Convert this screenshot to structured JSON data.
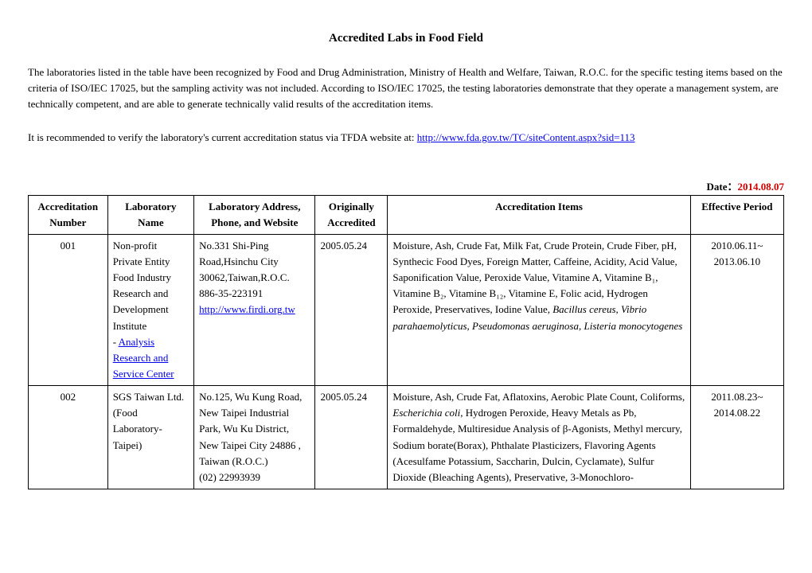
{
  "title": "Accredited Labs in Food Field",
  "intro_para": "The laboratories listed in the table have been recognized by Food and Drug Administration, Ministry of Health and Welfare, Taiwan, R.O.C. for the specific testing items based on the criteria of ISO/IEC 17025, but the sampling activity was not included. According to ISO/IEC 17025, the testing laboratories demonstrate that they operate a management system, are technically competent, and are able to generate technically valid results of the accreditation items.",
  "verify_text_prefix": "It is recommended to verify the laboratory's current accreditation status via TFDA website at: ",
  "verify_link": "http://www.fda.gov.tw/TC/siteContent.aspx?sid=113",
  "date_label": "Date：",
  "date_value": "2014.08.07",
  "columns": {
    "accnum": "Accreditation Number",
    "labname": "Laboratory Name",
    "addr": "Laboratory Address, Phone, and Website",
    "orig": "Originally Accredited",
    "items": "Accreditation Items",
    "eff": "Effective Period"
  },
  "rows": [
    {
      "accnum": "001",
      "labname_plain": "Non-profit Private Entity Food Industry Research and Development Institute",
      "labname_dash": "- ",
      "labname_link": "Analysis Research and Service Center",
      "addr_lines": "No.331 Shi-Ping Road,Hsinchu City 30062,Taiwan,R.O.C.",
      "addr_phone": "886-35-223191",
      "addr_website": "http://www.firdi.org.tw",
      "orig": "2005.05.24",
      "items_plain": "Moisture, Ash, Crude Fat, Milk Fat, Crude Protein, Crude Fiber, pH, Synthecic Food Dyes, Foreign Matter, Caffeine, Acidity, Acid Value, Saponification Value, Peroxide Value, Vitamine A, Vitamine B₁, Vitamine B₂, Vitamine B₁₂, Vitamine E, Folic acid, Hydrogen Peroxide, Preservatives, Iodine Value, ",
      "items_italic": "Bacillus cereus, Vibrio parahaemolyticus, Pseudomonas aeruginosa, Listeria monocytogenes",
      "eff": "2010.06.11~ 2013.06.10"
    },
    {
      "accnum": "002",
      "labname_plain": "SGS Taiwan Ltd. (Food Laboratory- Taipei)",
      "labname_dash": "",
      "labname_link": "",
      "addr_lines": "No.125, Wu Kung Road, New Taipei Industrial Park, Wu Ku District, New Taipei City 24886 , Taiwan (R.O.C.)",
      "addr_phone": "(02) 22993939",
      "addr_website": "",
      "orig": "2005.05.24",
      "items_plain1": "Moisture, Ash, Crude Fat, Aflatoxins, Aerobic Plate Count, Coliforms, ",
      "items_italic1": "Escherichia coli",
      "items_plain2": ", Hydrogen Peroxide, Heavy Metals as Pb, Formaldehyde, Multiresidue Analysis of β-Agonists, Methyl mercury, Sodium borate(Borax), Phthalate Plasticizers, Flavoring Agents (Acesulfame Potassium, Saccharin, Dulcin, Cyclamate), Sulfur Dioxide (Bleaching Agents), Preservative, 3-Monochloro-",
      "eff": "2011.08.23~ 2014.08.22"
    }
  ]
}
